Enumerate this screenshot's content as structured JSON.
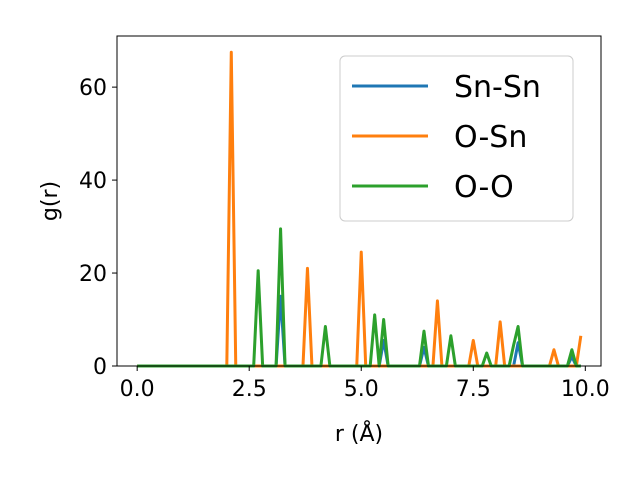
{
  "chart_data": {
    "type": "line",
    "xlabel": "r (Å)",
    "ylabel": "g(r)",
    "xlim": [
      -0.45,
      10.35
    ],
    "ylim": [
      0,
      71
    ],
    "xticks": [
      0.0,
      2.5,
      5.0,
      7.5,
      10.0
    ],
    "xtick_labels": [
      "0.0",
      "2.5",
      "5.0",
      "7.5",
      "10.0"
    ],
    "yticks": [
      0,
      20,
      40,
      60
    ],
    "ytick_labels": [
      "0",
      "20",
      "40",
      "60"
    ],
    "grid": false,
    "legend_position": "top-right",
    "series": [
      {
        "name": "Sn-Sn",
        "color": "#1f77b4",
        "x": [
          0.0,
          3.1,
          3.2,
          3.3,
          5.4,
          5.5,
          5.6,
          6.3,
          6.4,
          6.5,
          8.4,
          8.5,
          8.6,
          9.6,
          9.7,
          9.8,
          9.9
        ],
        "y": [
          0,
          0,
          15,
          0,
          0,
          5.5,
          0,
          0,
          4,
          0,
          0,
          5,
          0,
          0,
          2,
          0,
          0
        ]
      },
      {
        "name": "O-Sn",
        "color": "#ff7f0e",
        "x": [
          0.0,
          2.0,
          2.1,
          2.2,
          3.7,
          3.8,
          3.9,
          4.9,
          5.0,
          5.1,
          6.6,
          6.7,
          6.8,
          7.4,
          7.5,
          7.6,
          8.0,
          8.1,
          8.2,
          9.2,
          9.3,
          9.4,
          9.8,
          9.9
        ],
        "y": [
          0,
          0,
          67.5,
          0,
          0,
          21,
          0,
          0,
          24.5,
          0,
          0,
          14,
          0,
          0,
          5.5,
          0,
          0,
          9.5,
          0,
          0,
          3.5,
          0,
          0,
          6.5
        ]
      },
      {
        "name": "O-O",
        "color": "#2ca02c",
        "x": [
          0.0,
          2.6,
          2.7,
          2.8,
          3.1,
          3.2,
          3.3,
          4.1,
          4.2,
          4.3,
          5.2,
          5.3,
          5.4,
          5.5,
          5.6,
          6.3,
          6.4,
          6.5,
          6.9,
          7.0,
          7.1,
          7.7,
          7.8,
          7.9,
          8.3,
          8.4,
          8.5,
          8.6,
          9.6,
          9.7,
          9.8,
          9.9
        ],
        "y": [
          0,
          0,
          20.5,
          0,
          0,
          29.5,
          0,
          0,
          8.5,
          0,
          0,
          11,
          0,
          10,
          0,
          0,
          7.5,
          0,
          0,
          6.5,
          0,
          0,
          2.8,
          0,
          0,
          4.5,
          8.5,
          0,
          0,
          3.5,
          0,
          0
        ]
      }
    ]
  }
}
